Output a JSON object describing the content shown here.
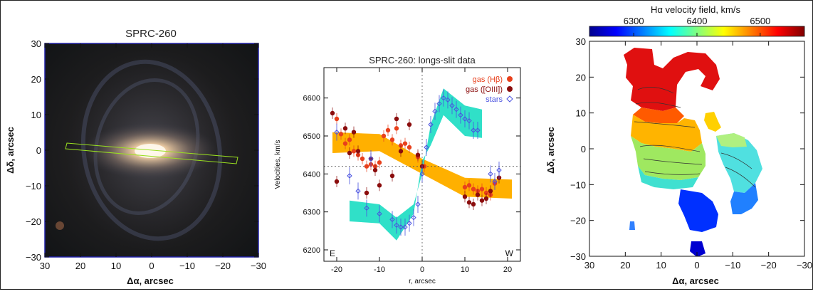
{
  "panels": {
    "image": {
      "title": "SPRC-260",
      "xlabel": "Δα, arcsec",
      "ylabel": "Δδ, arcsec",
      "xticks": [
        "30",
        "20",
        "10",
        "0",
        "−10",
        "−20",
        "−30"
      ],
      "yticks": [
        "30",
        "20",
        "10",
        "0",
        "−10",
        "−20",
        "−30"
      ]
    },
    "velocity_map": {
      "colorbar_title": "Hα velocity field, km/s",
      "colorbar_ticks": [
        "6300",
        "6400",
        "6500"
      ],
      "colorbar_range": [
        6230,
        6570
      ],
      "xlabel": "Δα, arcsec",
      "ylabel": "Δδ, arcsec",
      "xticks": [
        "30",
        "20",
        "10",
        "0",
        "−10",
        "−20",
        "−30"
      ],
      "yticks": [
        "30",
        "20",
        "10",
        "0",
        "−10",
        "−20",
        "−30"
      ]
    }
  },
  "chart_data": {
    "type": "scatter",
    "title": "SPRC-260: longs-slit data",
    "xlabel": "r, arcsec",
    "ylabel": "Velocities,  km/s",
    "xlim": [
      -23,
      23
    ],
    "ylim": [
      6170,
      6680
    ],
    "xticks": [
      -20,
      -10,
      0,
      10,
      20
    ],
    "yticks": [
      6200,
      6300,
      6400,
      6500,
      6600
    ],
    "systemic_velocity": 6420,
    "corner_labels": {
      "left": "E",
      "right": "W"
    },
    "legend": [
      {
        "label": "gas (Hβ)",
        "color": "#e8401c",
        "marker": "filled-circle"
      },
      {
        "label": "gas ([OIII])",
        "color": "#8b0d0d",
        "marker": "filled-circle"
      },
      {
        "label": "stars",
        "color": "#4a52e0",
        "marker": "open-diamond"
      }
    ],
    "legend_position": "top-right",
    "bands": [
      {
        "name": "gas model",
        "color": "#ffb000",
        "upper": [
          [
            -21,
            6510
          ],
          [
            -10,
            6505
          ],
          [
            0,
            6440
          ],
          [
            10,
            6390
          ],
          [
            21,
            6385
          ]
        ],
        "lower": [
          [
            21,
            6335
          ],
          [
            10,
            6340
          ],
          [
            0,
            6400
          ],
          [
            -10,
            6460
          ],
          [
            -21,
            6455
          ]
        ]
      },
      {
        "name": "stellar model",
        "color": "#30e0c8",
        "upper": [
          [
            -17,
            6330
          ],
          [
            -10,
            6320
          ],
          [
            -6,
            6285
          ],
          [
            -2,
            6320
          ],
          [
            0,
            6400
          ],
          [
            2,
            6530
          ],
          [
            5,
            6625
          ],
          [
            10,
            6580
          ],
          [
            14,
            6570
          ]
        ],
        "lower": [
          [
            14,
            6495
          ],
          [
            10,
            6500
          ],
          [
            5,
            6555
          ],
          [
            2,
            6475
          ],
          [
            0,
            6435
          ],
          [
            -2,
            6295
          ],
          [
            -6,
            6225
          ],
          [
            -10,
            6270
          ],
          [
            -17,
            6275
          ]
        ]
      }
    ],
    "series": [
      {
        "name": "gas (Hβ)",
        "color": "#e8401c",
        "points": [
          [
            -20,
            6545
          ],
          [
            -19,
            6505
          ],
          [
            -18,
            6480
          ],
          [
            -17,
            6490
          ],
          [
            -16,
            6460
          ],
          [
            -15,
            6450
          ],
          [
            -14,
            6440
          ],
          [
            -13,
            6420
          ],
          [
            -12,
            6425
          ],
          [
            -11,
            6420
          ],
          [
            -10,
            6430
          ],
          [
            -9,
            6500
          ],
          [
            -8,
            6515
          ],
          [
            -7,
            6490
          ],
          [
            -6,
            6520
          ],
          [
            -5,
            6475
          ],
          [
            -4,
            6480
          ],
          [
            -3,
            6470
          ],
          [
            -1,
            6445
          ],
          [
            0.5,
            6420
          ],
          [
            10,
            6365
          ],
          [
            11,
            6370
          ],
          [
            12,
            6360
          ],
          [
            13,
            6355
          ],
          [
            14,
            6360
          ],
          [
            15,
            6350
          ],
          [
            16,
            6345
          ],
          [
            17,
            6375
          ]
        ]
      },
      {
        "name": "gas ([OIII])",
        "color": "#8b0d0d",
        "points": [
          [
            -21,
            6560
          ],
          [
            -20,
            6380
          ],
          [
            -18,
            6520
          ],
          [
            -17,
            6455
          ],
          [
            -16,
            6510
          ],
          [
            -15,
            6460
          ],
          [
            -13,
            6350
          ],
          [
            -12,
            6440
          ],
          [
            -11,
            6410
          ],
          [
            -10,
            6370
          ],
          [
            -7,
            6395
          ],
          [
            -6,
            6545
          ],
          [
            -5,
            6460
          ],
          [
            -3,
            6530
          ],
          [
            -1,
            6450
          ],
          [
            0,
            6420
          ],
          [
            10,
            6340
          ],
          [
            11,
            6325
          ],
          [
            12,
            6320
          ],
          [
            13,
            6345
          ],
          [
            14,
            6330
          ],
          [
            15,
            6335
          ],
          [
            16,
            6355
          ],
          [
            18,
            6390
          ]
        ]
      },
      {
        "name": "stars",
        "color": "#4a52e0",
        "points": [
          [
            -20,
            6510
          ],
          [
            -17,
            6395
          ],
          [
            -15,
            6355
          ],
          [
            -13,
            6310
          ],
          [
            -12,
            6440
          ],
          [
            -10,
            6295
          ],
          [
            -7,
            6280
          ],
          [
            -6,
            6265
          ],
          [
            -5,
            6260
          ],
          [
            -4,
            6260
          ],
          [
            -3,
            6270
          ],
          [
            -2,
            6285
          ],
          [
            -1,
            6320
          ],
          [
            0,
            6400
          ],
          [
            1,
            6470
          ],
          [
            2,
            6530
          ],
          [
            3,
            6565
          ],
          [
            4,
            6585
          ],
          [
            5,
            6600
          ],
          [
            6,
            6595
          ],
          [
            7,
            6580
          ],
          [
            8,
            6570
          ],
          [
            9,
            6555
          ],
          [
            10,
            6545
          ],
          [
            11,
            6540
          ],
          [
            12,
            6515
          ],
          [
            13,
            6515
          ],
          [
            16,
            6400
          ],
          [
            17,
            6380
          ],
          [
            18,
            6410
          ]
        ]
      }
    ]
  }
}
